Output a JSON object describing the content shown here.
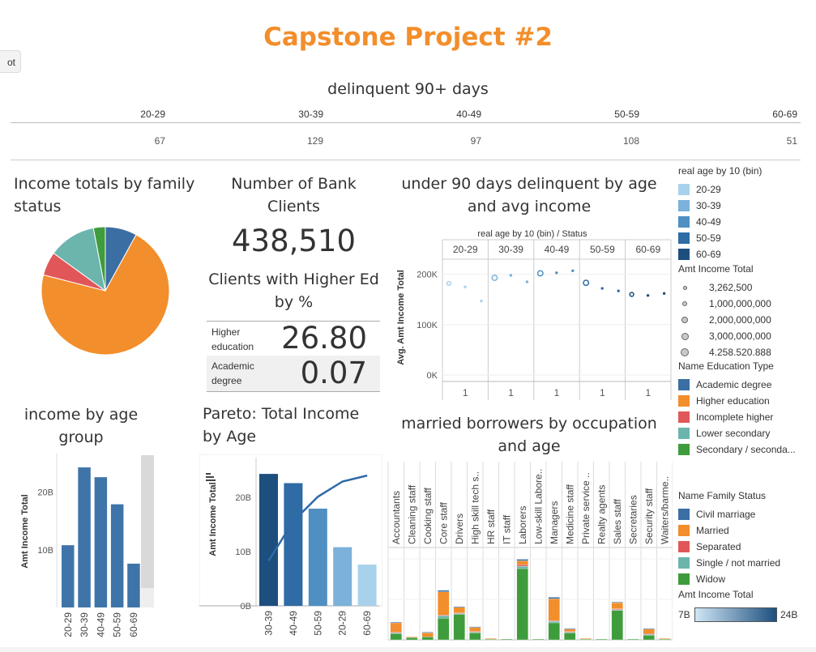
{
  "dashboard_title": "Capstone Project #2",
  "tab_stub_label": "ot",
  "delinquent": {
    "title": "delinquent 90+ days",
    "columns": [
      "20-29",
      "30-39",
      "40-49",
      "50-59",
      "60-69"
    ],
    "values": [
      "67",
      "129",
      "97",
      "108",
      "51"
    ]
  },
  "pie_title": "Income totals by family status",
  "kpi": {
    "clients_title": "Number of Bank Clients",
    "clients_value": "438,510",
    "ed_title": "Clients with Higher Ed by %",
    "rows": [
      {
        "label": "Higher education",
        "value": "26.80"
      },
      {
        "label": "Academic degree",
        "value": "0.07"
      }
    ]
  },
  "scatter_title": "under 90 days delinquent by age and avg income",
  "bar_age_title": "income by age group",
  "pareto_title": "Pareto: Total Income by Age",
  "stack_title": "married borrowers by occupation and age",
  "legends": {
    "age_title": "real age by 10 (bin)",
    "age_items": [
      "20-29",
      "30-39",
      "40-49",
      "50-59",
      "60-69"
    ],
    "age_colors": [
      "#a8d2ec",
      "#7bb1da",
      "#4f8fc1",
      "#2f6ba4",
      "#1d4f7e"
    ],
    "size_title": "Amt Income Total",
    "size_items": [
      "3,262,500",
      "1,000,000,000",
      "2,000,000,000",
      "3,000,000,000",
      "4.258.520.888"
    ],
    "edu_title": "Name Education Type",
    "edu_items": [
      "Academic degree",
      "Higher education",
      "Incomplete higher",
      "Lower secondary",
      "Secondary / seconda..."
    ],
    "edu_colors": [
      "#3b6ea3",
      "#f28e2b",
      "#e15759",
      "#6bb5ad",
      "#3f9c3c"
    ],
    "family_title": "Name Family Status",
    "family_items": [
      "Civil marriage",
      "Married",
      "Separated",
      "Single / not married",
      "Widow"
    ],
    "family_colors": [
      "#3b6ea3",
      "#f28e2b",
      "#e15759",
      "#6bb5ad",
      "#3f9c3c"
    ],
    "grad_title": "Amt Income Total",
    "grad_min": "7B",
    "grad_max": "24B"
  },
  "chart_data": [
    {
      "type": "table",
      "title": "delinquent 90+ days",
      "columns": [
        "20-29",
        "30-39",
        "40-49",
        "50-59",
        "60-69"
      ],
      "values": [
        67,
        129,
        97,
        108,
        51
      ]
    },
    {
      "type": "pie",
      "title": "Income totals by family status",
      "labels": [
        "Civil marriage",
        "Married",
        "Separated",
        "Single / not married",
        "Widow"
      ],
      "values": [
        8,
        71,
        6,
        12,
        3
      ],
      "colors": [
        "#3b6ea3",
        "#f28e2b",
        "#e15759",
        "#6bb5ad",
        "#3f9c3c"
      ]
    },
    {
      "type": "scatter",
      "title": "under 90 days delinquent by age and avg income",
      "column_header": "real age by 10 (bin)  /  Status",
      "groups": [
        "20-29",
        "30-39",
        "40-49",
        "50-59",
        "60-69"
      ],
      "group_colors": [
        "#a8d2ec",
        "#7bb1da",
        "#4f8fc1",
        "#2f6ba4",
        "#1d4f7e"
      ],
      "status_label": "1",
      "ylabel": "Avg. Amt Income Total",
      "yticks": [
        "0K",
        "100K",
        "200K"
      ],
      "ylim": [
        0,
        230000
      ],
      "points": [
        {
          "group": 0,
          "y": 182000,
          "size": 2
        },
        {
          "group": 0,
          "y": 175000,
          "size": 1
        },
        {
          "group": 0,
          "y": 147000,
          "size": 1
        },
        {
          "group": 1,
          "y": 193000,
          "size": 3
        },
        {
          "group": 1,
          "y": 198000,
          "size": 1
        },
        {
          "group": 1,
          "y": 185000,
          "size": 1
        },
        {
          "group": 2,
          "y": 202000,
          "size": 3
        },
        {
          "group": 2,
          "y": 203000,
          "size": 1
        },
        {
          "group": 2,
          "y": 207000,
          "size": 1
        },
        {
          "group": 3,
          "y": 183000,
          "size": 3
        },
        {
          "group": 3,
          "y": 172000,
          "size": 1
        },
        {
          "group": 3,
          "y": 167000,
          "size": 1
        },
        {
          "group": 4,
          "y": 160000,
          "size": 2
        },
        {
          "group": 4,
          "y": 158000,
          "size": 1
        },
        {
          "group": 4,
          "y": 162000,
          "size": 1
        }
      ]
    },
    {
      "type": "bar",
      "title": "income by age group",
      "categories": [
        "20-29",
        "30-39",
        "40-49",
        "50-59",
        "60-69"
      ],
      "values": [
        10.8,
        24.3,
        22.6,
        17.9,
        7.6
      ],
      "ylabel": "Amt Income Total",
      "yticks": [
        "10B",
        "20B"
      ],
      "ylim": [
        0,
        26.7
      ]
    },
    {
      "type": "bar",
      "title": "Pareto: Total Income by Age",
      "categories": [
        "30-39",
        "40-49",
        "50-59",
        "20-29",
        "60-69"
      ],
      "values": [
        24.3,
        22.6,
        17.9,
        10.8,
        7.6
      ],
      "colors": [
        "#1d4f7e",
        "#2f6ba4",
        "#4f8fc1",
        "#7bb1da",
        "#a8d2ec"
      ],
      "cumulative_line": [
        8.3,
        15.6,
        20.1,
        22.9,
        24.0
      ],
      "ylabel": "Amt Income Total",
      "yticks": [
        "0B",
        "10B",
        "20B"
      ],
      "ylim": [
        0,
        27.3
      ]
    },
    {
      "type": "bar",
      "title": "married borrowers by occupation and age",
      "categories": [
        "Accountants",
        "Cleaning staff",
        "Cooking staff",
        "Core staff",
        "Drivers",
        "High skill tech s..",
        "HR staff",
        "IT staff",
        "Laborers",
        "Low-skill Labore..",
        "Managers",
        "Medicine staff",
        "Private service ..",
        "Realty agents",
        "Sales staff",
        "Secretaries",
        "Security staff",
        "Waiters/barme.."
      ],
      "series": [
        {
          "name": "Widow",
          "values": [
            8,
            3,
            4,
            28,
            33,
            9,
            1,
            1,
            92,
            1,
            22,
            9,
            1,
            1,
            38,
            1,
            6,
            1
          ]
        },
        {
          "name": "Single / not married",
          "values": [
            1,
            0,
            0,
            3,
            1,
            1,
            0,
            0,
            3,
            0,
            2,
            1,
            0,
            0,
            1,
            0,
            1,
            0
          ]
        },
        {
          "name": "Separated",
          "values": [
            1,
            0,
            0,
            1,
            1,
            1,
            0,
            0,
            2,
            0,
            1,
            1,
            0,
            0,
            1,
            0,
            1,
            0
          ]
        },
        {
          "name": "Married",
          "values": [
            12,
            1,
            5,
            30,
            7,
            5,
            1,
            0,
            5,
            0,
            28,
            3,
            1,
            0,
            8,
            0,
            6,
            1
          ]
        },
        {
          "name": "Civil marriage",
          "values": [
            1,
            0,
            1,
            2,
            1,
            1,
            0,
            0,
            2,
            0,
            2,
            1,
            0,
            0,
            1,
            0,
            1,
            0
          ]
        }
      ],
      "ylim": [
        0,
        115
      ]
    }
  ]
}
